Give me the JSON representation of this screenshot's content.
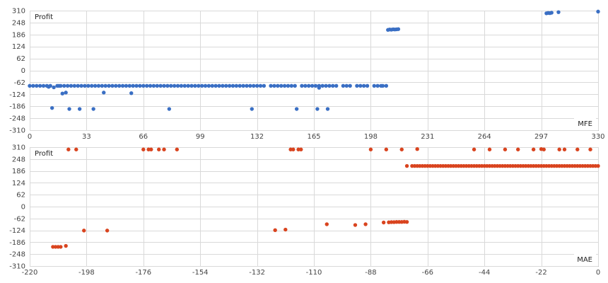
{
  "chart_data": [
    {
      "type": "scatter",
      "ylabel": "Profit",
      "xlabel": "MFE",
      "xlim": [
        0,
        330
      ],
      "ylim": [
        -310,
        310
      ],
      "x_ticks": [
        "0",
        "33",
        "66",
        "99",
        "132",
        "165",
        "198",
        "231",
        "264",
        "297",
        "330"
      ],
      "y_ticks": [
        "310",
        "248",
        "186",
        "124",
        "62",
        "0",
        "-62",
        "-124",
        "-186",
        "-248",
        "-310"
      ],
      "grid": true,
      "color": "#3a6fc4",
      "series": [
        {
          "points": [
            [
              0,
              -80
            ],
            [
              2,
              -80
            ],
            [
              4,
              -80
            ],
            [
              6,
              -80
            ],
            [
              8,
              -80
            ],
            [
              10,
              -80
            ],
            [
              11,
              -85
            ],
            [
              12,
              -80
            ],
            [
              13,
              -195
            ],
            [
              14,
              -88
            ],
            [
              16,
              -80
            ],
            [
              17,
              -80
            ],
            [
              18,
              -80
            ],
            [
              19,
              -120
            ],
            [
              20,
              -80
            ],
            [
              21,
              -115
            ],
            [
              22,
              -80
            ],
            [
              23,
              -200
            ],
            [
              24,
              -80
            ],
            [
              26,
              -80
            ],
            [
              28,
              -80
            ],
            [
              29,
              -200
            ],
            [
              30,
              -80
            ],
            [
              32,
              -80
            ],
            [
              34,
              -80
            ],
            [
              36,
              -80
            ],
            [
              37,
              -200
            ],
            [
              38,
              -80
            ],
            [
              40,
              -80
            ],
            [
              42,
              -80
            ],
            [
              43,
              -115
            ],
            [
              44,
              -80
            ],
            [
              46,
              -80
            ],
            [
              48,
              -80
            ],
            [
              50,
              -80
            ],
            [
              52,
              -80
            ],
            [
              54,
              -80
            ],
            [
              56,
              -80
            ],
            [
              58,
              -80
            ],
            [
              59,
              -118
            ],
            [
              60,
              -80
            ],
            [
              62,
              -80
            ],
            [
              64,
              -80
            ],
            [
              66,
              -80
            ],
            [
              68,
              -80
            ],
            [
              70,
              -80
            ],
            [
              72,
              -80
            ],
            [
              74,
              -80
            ],
            [
              76,
              -80
            ],
            [
              78,
              -80
            ],
            [
              80,
              -80
            ],
            [
              81,
              -200
            ],
            [
              82,
              -80
            ],
            [
              84,
              -80
            ],
            [
              86,
              -80
            ],
            [
              88,
              -80
            ],
            [
              90,
              -80
            ],
            [
              92,
              -80
            ],
            [
              94,
              -80
            ],
            [
              96,
              -80
            ],
            [
              98,
              -80
            ],
            [
              100,
              -80
            ],
            [
              102,
              -80
            ],
            [
              104,
              -80
            ],
            [
              106,
              -80
            ],
            [
              108,
              -80
            ],
            [
              110,
              -80
            ],
            [
              112,
              -80
            ],
            [
              114,
              -80
            ],
            [
              116,
              -80
            ],
            [
              118,
              -80
            ],
            [
              120,
              -80
            ],
            [
              122,
              -80
            ],
            [
              124,
              -80
            ],
            [
              126,
              -80
            ],
            [
              128,
              -80
            ],
            [
              129,
              -200
            ],
            [
              130,
              -80
            ],
            [
              132,
              -80
            ],
            [
              134,
              -80
            ],
            [
              136,
              -80
            ],
            [
              140,
              -80
            ],
            [
              142,
              -80
            ],
            [
              144,
              -80
            ],
            [
              146,
              -80
            ],
            [
              148,
              -80
            ],
            [
              150,
              -80
            ],
            [
              152,
              -80
            ],
            [
              154,
              -80
            ],
            [
              155,
              -200
            ],
            [
              158,
              -80
            ],
            [
              160,
              -80
            ],
            [
              162,
              -80
            ],
            [
              164,
              -80
            ],
            [
              166,
              -80
            ],
            [
              167,
              -200
            ],
            [
              168,
              -90
            ],
            [
              168,
              -80
            ],
            [
              170,
              -80
            ],
            [
              172,
              -80
            ],
            [
              173,
              -200
            ],
            [
              174,
              -80
            ],
            [
              176,
              -80
            ],
            [
              178,
              -80
            ],
            [
              182,
              -80
            ],
            [
              184,
              -80
            ],
            [
              186,
              -80
            ],
            [
              190,
              -80
            ],
            [
              192,
              -80
            ],
            [
              194,
              -80
            ],
            [
              196,
              -80
            ],
            [
              200,
              -80
            ],
            [
              202,
              -80
            ],
            [
              204,
              -80
            ],
            [
              205,
              -80
            ],
            [
              207,
              -80
            ],
            [
              208,
              210
            ],
            [
              209,
              212
            ],
            [
              210,
              211
            ],
            [
              211,
              213
            ],
            [
              212,
              212
            ],
            [
              213,
              213
            ],
            [
              214,
              214
            ],
            [
              300,
              296
            ],
            [
              301,
              298
            ],
            [
              302,
              297
            ],
            [
              303,
              299
            ],
            [
              307,
              302
            ],
            [
              330,
              305
            ]
          ]
        }
      ]
    },
    {
      "type": "scatter",
      "ylabel": "Profit",
      "xlabel": "MAE",
      "xlim": [
        -220,
        0
      ],
      "ylim": [
        -310,
        310
      ],
      "x_ticks": [
        "-220",
        "-198",
        "-176",
        "-154",
        "-132",
        "-110",
        "-88",
        "-66",
        "-44",
        "-22",
        "0"
      ],
      "y_ticks": [
        "310",
        "248",
        "186",
        "124",
        "62",
        "0",
        "-62",
        "-124",
        "-186",
        "-248",
        "-310"
      ],
      "grid": true,
      "color": "#d9441f",
      "series": [
        {
          "points": [
            [
              -211,
              -210
            ],
            [
              -210,
              -210
            ],
            [
              -209,
              -210
            ],
            [
              -208,
              -210
            ],
            [
              -206,
              -205
            ],
            [
              -205,
              298
            ],
            [
              -202,
              298
            ],
            [
              -199,
              -125
            ],
            [
              -190,
              -125
            ],
            [
              -176,
              298
            ],
            [
              -174,
              298
            ],
            [
              -173,
              298
            ],
            [
              -170,
              298
            ],
            [
              -168,
              298
            ],
            [
              -163,
              298
            ],
            [
              -125,
              -123
            ],
            [
              -121,
              -120
            ],
            [
              -119,
              298
            ],
            [
              -118,
              298
            ],
            [
              -116,
              298
            ],
            [
              -115,
              298
            ],
            [
              -105,
              -92
            ],
            [
              -94,
              -96
            ],
            [
              -90,
              -92
            ],
            [
              -88,
              298
            ],
            [
              -83,
              -83
            ],
            [
              -82,
              298
            ],
            [
              -81,
              -82
            ],
            [
              -80,
              -81
            ],
            [
              -79,
              -81
            ],
            [
              -78,
              -80
            ],
            [
              -77,
              -80
            ],
            [
              -76,
              -80
            ],
            [
              -75,
              -79
            ],
            [
              -74,
              -80
            ],
            [
              -76,
              298
            ],
            [
              -74,
              212
            ],
            [
              -70,
              300
            ],
            [
              -72,
              212
            ],
            [
              -71,
              212
            ],
            [
              -70,
              212
            ],
            [
              -69,
              212
            ],
            [
              -68,
              212
            ],
            [
              -67,
              212
            ],
            [
              -66,
              212
            ],
            [
              -65,
              212
            ],
            [
              -64,
              212
            ],
            [
              -63,
              212
            ],
            [
              -62,
              212
            ],
            [
              -61,
              212
            ],
            [
              -60,
              212
            ],
            [
              -59,
              212
            ],
            [
              -58,
              212
            ],
            [
              -57,
              212
            ],
            [
              -56,
              212
            ],
            [
              -55,
              212
            ],
            [
              -54,
              212
            ],
            [
              -53,
              212
            ],
            [
              -52,
              212
            ],
            [
              -51,
              212
            ],
            [
              -50,
              212
            ],
            [
              -49,
              212
            ],
            [
              -48,
              212
            ],
            [
              -48,
              298
            ],
            [
              -47,
              212
            ],
            [
              -46,
              212
            ],
            [
              -45,
              212
            ],
            [
              -44,
              212
            ],
            [
              -43,
              212
            ],
            [
              -42,
              298
            ],
            [
              -42,
              212
            ],
            [
              -41,
              212
            ],
            [
              -40,
              212
            ],
            [
              -39,
              212
            ],
            [
              -38,
              212
            ],
            [
              -37,
              212
            ],
            [
              -36,
              298
            ],
            [
              -36,
              212
            ],
            [
              -35,
              212
            ],
            [
              -34,
              212
            ],
            [
              -33,
              212
            ],
            [
              -32,
              212
            ],
            [
              -31,
              298
            ],
            [
              -31,
              212
            ],
            [
              -30,
              212
            ],
            [
              -29,
              212
            ],
            [
              -28,
              212
            ],
            [
              -27,
              212
            ],
            [
              -26,
              212
            ],
            [
              -25,
              298
            ],
            [
              -25,
              212
            ],
            [
              -24,
              212
            ],
            [
              -23,
              212
            ],
            [
              -22,
              212
            ],
            [
              -22,
              300
            ],
            [
              -21,
              212
            ],
            [
              -21,
              298
            ],
            [
              -20,
              212
            ],
            [
              -19,
              212
            ],
            [
              -18,
              212
            ],
            [
              -17,
              212
            ],
            [
              -16,
              212
            ],
            [
              -15,
              298
            ],
            [
              -15,
              212
            ],
            [
              -14,
              212
            ],
            [
              -13,
              298
            ],
            [
              -13,
              212
            ],
            [
              -12,
              212
            ],
            [
              -11,
              212
            ],
            [
              -10,
              212
            ],
            [
              -9,
              212
            ],
            [
              -8,
              298
            ],
            [
              -8,
              212
            ],
            [
              -7,
              212
            ],
            [
              -6,
              212
            ],
            [
              -5,
              212
            ],
            [
              -4,
              212
            ],
            [
              -3,
              298
            ],
            [
              -3,
              212
            ],
            [
              -2,
              212
            ],
            [
              -1,
              212
            ],
            [
              0,
              212
            ]
          ]
        }
      ]
    }
  ]
}
